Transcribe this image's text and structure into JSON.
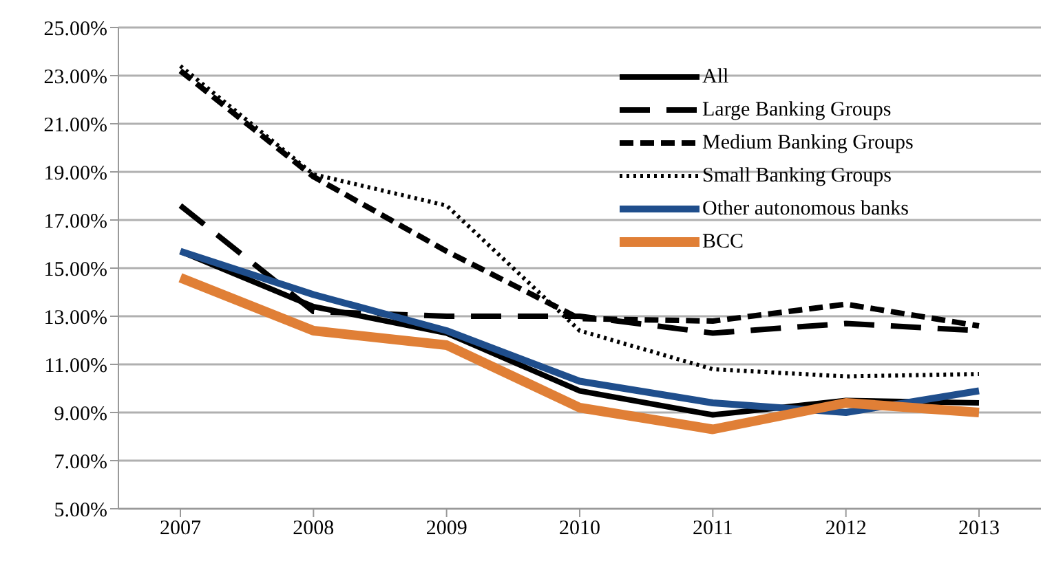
{
  "chart_data": {
    "type": "line",
    "categories": [
      "2007",
      "2008",
      "2009",
      "2010",
      "2011",
      "2012",
      "2013"
    ],
    "series": [
      {
        "name": "All",
        "color": "#000000",
        "line_style": "solid",
        "values": [
          15.7,
          13.4,
          12.3,
          9.9,
          8.9,
          9.5,
          9.4
        ]
      },
      {
        "name": "Large Banking Groups",
        "color": "#000000",
        "line_style": "dashed",
        "values": [
          17.6,
          13.2,
          13.0,
          13.0,
          12.3,
          12.7,
          12.4
        ]
      },
      {
        "name": "Medium Banking Groups",
        "color": "#000000",
        "line_style": "dashed",
        "values": [
          23.2,
          18.8,
          15.7,
          12.9,
          12.8,
          13.5,
          12.6
        ]
      },
      {
        "name": "Small Banking Groups",
        "color": "#000000",
        "line_style": "dotted",
        "values": [
          23.4,
          18.9,
          17.6,
          12.4,
          10.8,
          10.5,
          10.6
        ]
      },
      {
        "name": "Other autonomous banks",
        "color": "#1f4e8c",
        "line_style": "solid",
        "values": [
          15.7,
          13.9,
          12.4,
          10.3,
          9.4,
          9.0,
          9.9
        ]
      },
      {
        "name": "BCC",
        "color": "#e07f36",
        "line_style": "solid",
        "values": [
          14.6,
          12.4,
          11.8,
          9.2,
          8.3,
          9.4,
          9.0
        ]
      }
    ],
    "ylim": [
      5,
      25
    ],
    "yticks": [
      {
        "value": 5,
        "label": "5.00%"
      },
      {
        "value": 7,
        "label": "7.00%"
      },
      {
        "value": 9,
        "label": "9.00%"
      },
      {
        "value": 11,
        "label": "11.00%"
      },
      {
        "value": 13,
        "label": "13.00%"
      },
      {
        "value": 15,
        "label": "15.00%"
      },
      {
        "value": 17,
        "label": "17.00%"
      },
      {
        "value": 19,
        "label": "19.00%"
      },
      {
        "value": 21,
        "label": "21.00%"
      },
      {
        "value": 23,
        "label": "23.00%"
      },
      {
        "value": 25,
        "label": "25.00%"
      }
    ],
    "grid": "y",
    "legend": "top right",
    "marker": "none"
  }
}
